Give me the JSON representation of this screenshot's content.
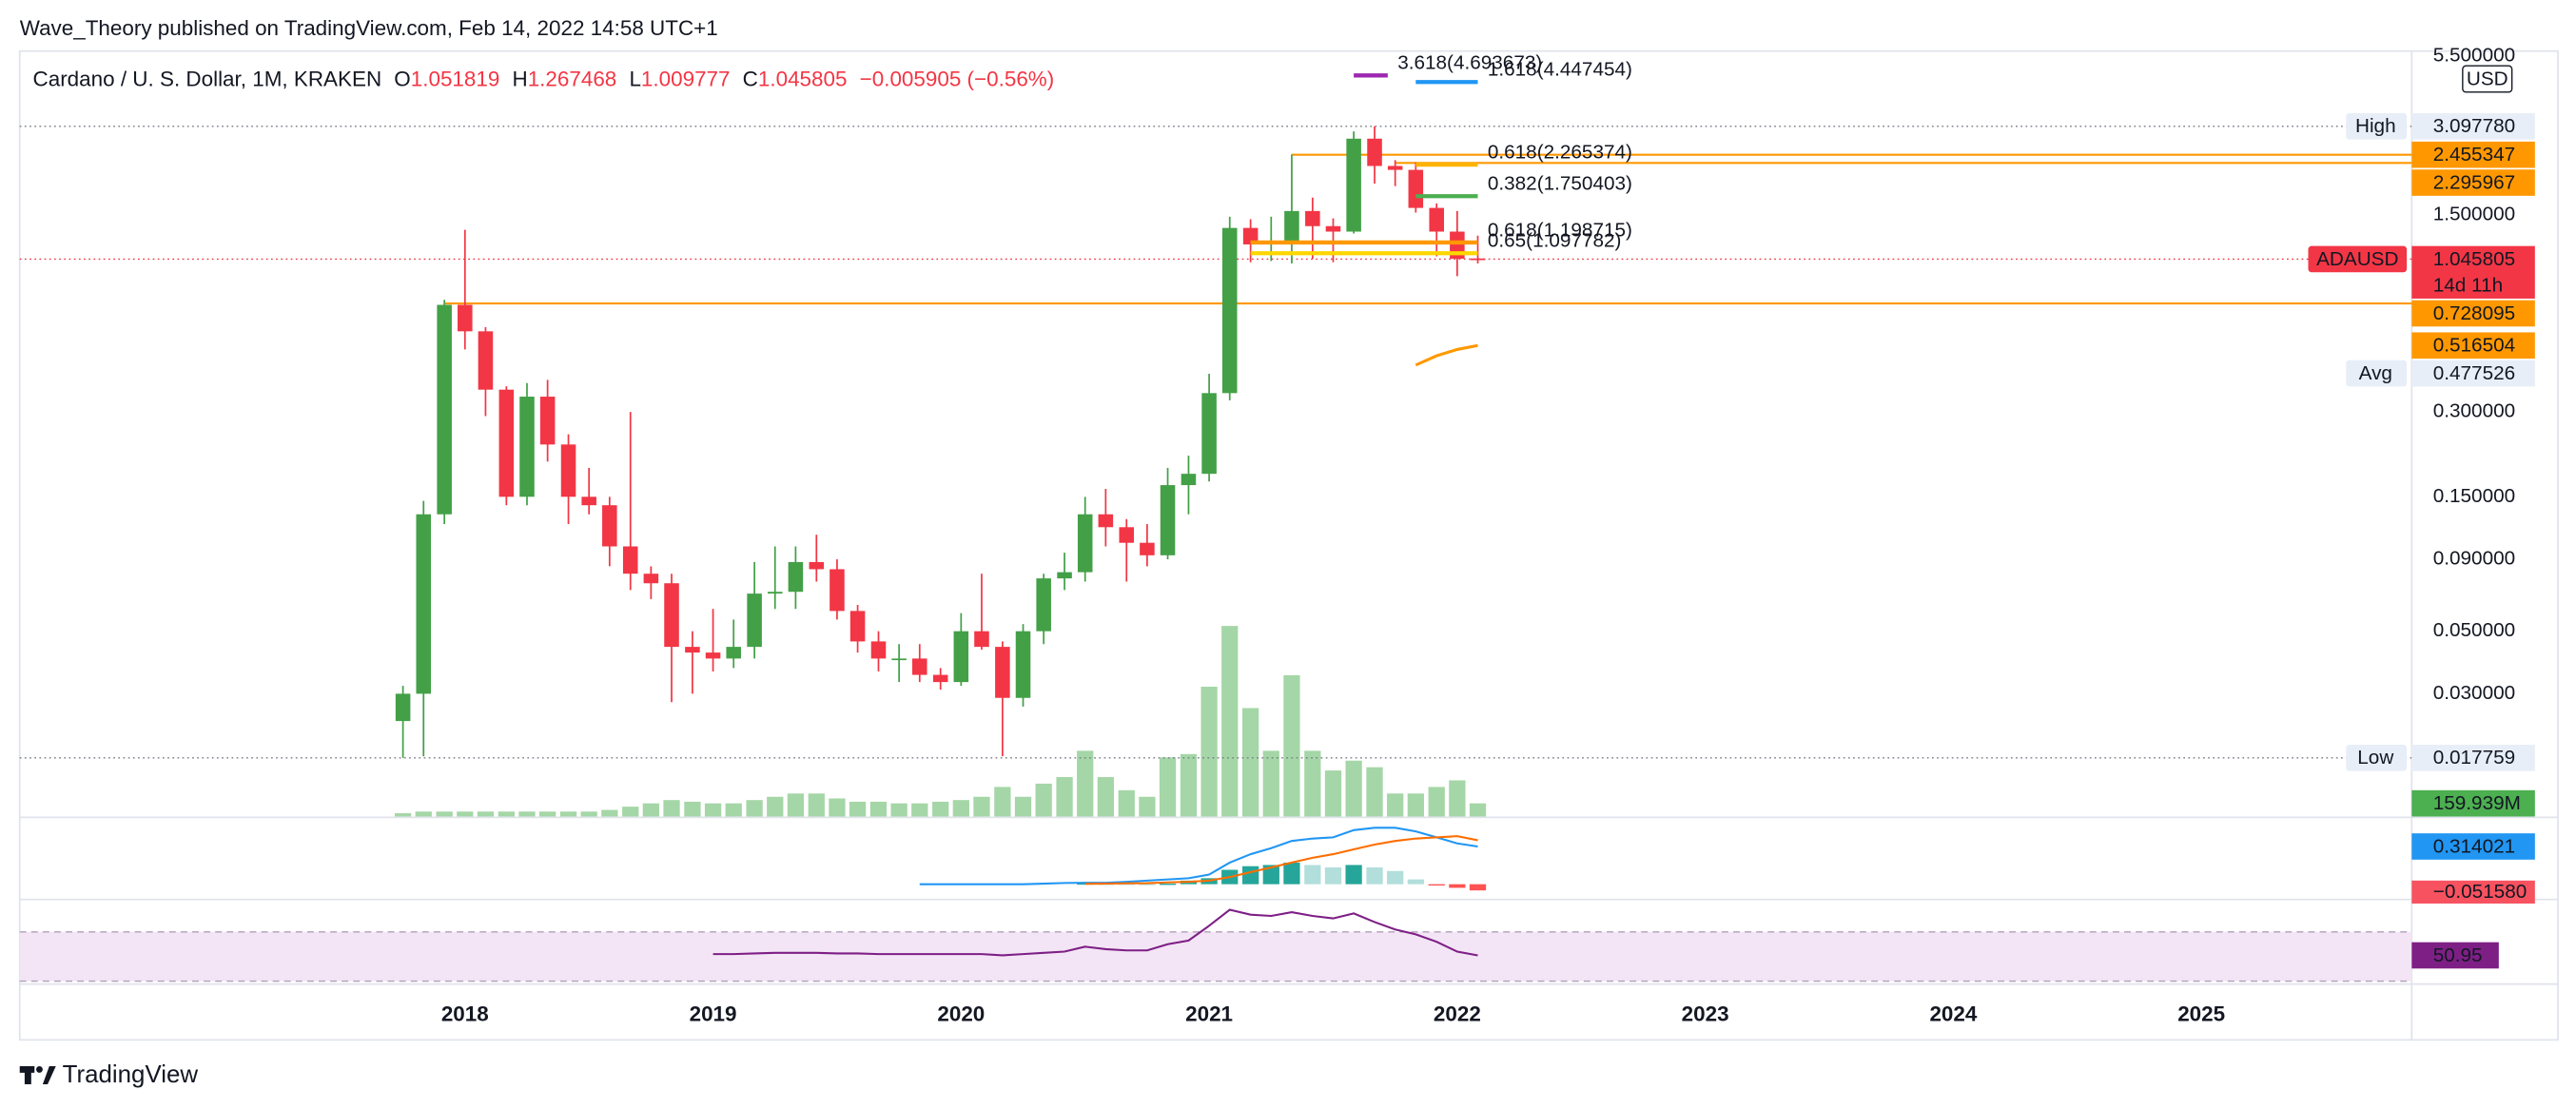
{
  "header": {
    "title": "Wave_Theory published on TradingView.com, Feb 14, 2022 14:58 UTC+1"
  },
  "footer": {
    "brand": "TradingView"
  },
  "chart_data": {
    "type": "candlestick",
    "legend": {
      "symbol": "Cardano / U. S. Dollar, 1M, KRAKEN",
      "keys": [
        "O",
        "H",
        "L",
        "C"
      ],
      "change": "−0.005905 (−0.56%)"
    },
    "currency": "USD",
    "log_scale": true,
    "up_color": "#43a047",
    "down_color": "#f23645",
    "xlim": [
      2016.205,
      2025.848
    ],
    "xticks": [
      2018,
      2019,
      2020,
      2021,
      2022,
      2023,
      2024,
      2025
    ],
    "ylim": [
      0.011,
      5.73
    ],
    "yticks": [
      {
        "value": 5.5,
        "label": "5.500000"
      },
      {
        "value": 1.5,
        "label": "1.500000"
      },
      {
        "value": 0.3,
        "label": "0.300000"
      },
      {
        "value": 0.15,
        "label": "0.150000"
      },
      {
        "value": 0.09,
        "label": "0.090000"
      },
      {
        "value": 0.05,
        "label": "0.050000"
      },
      {
        "value": 0.03,
        "label": "0.030000"
      }
    ],
    "x": [
      2017.75,
      2017.833,
      2017.917,
      2018,
      2018.083,
      2018.167,
      2018.25,
      2018.333,
      2018.417,
      2018.5,
      2018.583,
      2018.667,
      2018.75,
      2018.833,
      2018.917,
      2019,
      2019.083,
      2019.167,
      2019.25,
      2019.333,
      2019.417,
      2019.5,
      2019.583,
      2019.667,
      2019.75,
      2019.833,
      2019.917,
      2020,
      2020.083,
      2020.167,
      2020.25,
      2020.333,
      2020.417,
      2020.5,
      2020.583,
      2020.667,
      2020.75,
      2020.833,
      2020.917,
      2021,
      2021.083,
      2021.167,
      2021.25,
      2021.333,
      2021.417,
      2021.5,
      2021.583,
      2021.667,
      2021.75,
      2021.833,
      2021.917,
      2022,
      2022.083
    ],
    "open": [
      0.024,
      0.03,
      0.13,
      0.72,
      0.58,
      0.36,
      0.15,
      0.34,
      0.23,
      0.15,
      0.14,
      0.1,
      0.08,
      0.074,
      0.044,
      0.042,
      0.04,
      0.044,
      0.068,
      0.069,
      0.088,
      0.083,
      0.059,
      0.046,
      0.04,
      0.04,
      0.035,
      0.033,
      0.05,
      0.044,
      0.029,
      0.05,
      0.077,
      0.081,
      0.13,
      0.117,
      0.103,
      0.093,
      0.165,
      0.181,
      0.35,
      1.35,
      1.18,
      1.21,
      1.55,
      1.37,
      1.31,
      2.8,
      2.24,
      2.17,
      1.59,
      1.31,
      1.051819
    ],
    "high": [
      0.032,
      0.145,
      0.75,
      1.33,
      0.6,
      0.37,
      0.38,
      0.39,
      0.25,
      0.19,
      0.15,
      0.3,
      0.085,
      0.08,
      0.05,
      0.06,
      0.055,
      0.088,
      0.1,
      0.1,
      0.11,
      0.09,
      0.062,
      0.05,
      0.045,
      0.045,
      0.037,
      0.058,
      0.08,
      0.046,
      0.053,
      0.08,
      0.095,
      0.15,
      0.16,
      0.125,
      0.12,
      0.19,
      0.21,
      0.41,
      1.48,
      1.45,
      1.48,
      2.46,
      1.73,
      1.46,
      2.97,
      3.09778,
      2.35,
      2.31,
      1.65,
      1.55,
      1.267468
    ],
    "low": [
      0.017759,
      0.018,
      0.12,
      0.5,
      0.29,
      0.14,
      0.14,
      0.2,
      0.12,
      0.13,
      0.085,
      0.07,
      0.065,
      0.028,
      0.03,
      0.036,
      0.037,
      0.04,
      0.06,
      0.06,
      0.075,
      0.055,
      0.042,
      0.036,
      0.033,
      0.033,
      0.031,
      0.032,
      0.043,
      0.018,
      0.027,
      0.045,
      0.07,
      0.075,
      0.1,
      0.075,
      0.085,
      0.09,
      0.13,
      0.17,
      0.33,
      1.02,
      1.03,
      1.01,
      1.05,
      1.02,
      1.29,
      1.94,
      1.9,
      1.53,
      1.07,
      0.91,
      1.009777
    ],
    "close": [
      0.03,
      0.13,
      0.72,
      0.58,
      0.36,
      0.15,
      0.34,
      0.23,
      0.15,
      0.14,
      0.1,
      0.08,
      0.074,
      0.044,
      0.042,
      0.04,
      0.044,
      0.068,
      0.069,
      0.088,
      0.083,
      0.059,
      0.046,
      0.04,
      0.04,
      0.035,
      0.033,
      0.05,
      0.044,
      0.029,
      0.05,
      0.077,
      0.081,
      0.13,
      0.117,
      0.103,
      0.093,
      0.165,
      0.181,
      0.35,
      1.35,
      1.18,
      1.21,
      1.55,
      1.37,
      1.31,
      2.8,
      2.24,
      2.17,
      1.59,
      1.31,
      1.05,
      1.045805
    ],
    "symbol_label": "ADAUSD",
    "countdown": "14d 11h",
    "stats": [
      {
        "name": "High",
        "value": 3.09778,
        "label": "3.097780",
        "dotted": true
      },
      {
        "name": "Avg",
        "value": 0.477526,
        "dotted": false
      },
      {
        "name": "Low",
        "value": 0.017759,
        "dotted": true
      }
    ],
    "price_lines": [
      {
        "value": 2.455347,
        "color": "#ff9800",
        "from": 2021.333
      },
      {
        "value": 2.295967,
        "color": "#ff9800",
        "from": 2021.75
      },
      {
        "value": 0.728095,
        "color": "#ff9800",
        "from": 2017.917
      }
    ],
    "fib_levels": [
      {
        "label": "3.618(4.693673)",
        "value": 4.693673,
        "color": "#9c27b0",
        "from": 2021.583,
        "to": 2021.72
      },
      {
        "label": "1.618(4.447454)",
        "value": 4.447454,
        "color": "#2196f3",
        "from": 2021.833,
        "to": 2022.083
      },
      {
        "label": "0.618(2.265374)",
        "value": 2.265374,
        "color": "#ffb300",
        "from": 2021.833,
        "to": 2022.083
      },
      {
        "label": "0.382(1.750403)",
        "value": 1.750403,
        "color": "#4caf50",
        "from": 2021.833,
        "to": 2022.083
      },
      {
        "label": "0.618(1.198715)",
        "value": 1.198715,
        "color": "#ff9800",
        "from": 2021.167,
        "to": 2022.083
      },
      {
        "label": "0.65(1.097782)",
        "value": 1.097782,
        "color": "#ffd600",
        "from": 2021.167,
        "to": 2022.083
      }
    ],
    "ma": {
      "color": "#ff9800",
      "values": [
        null,
        null,
        null,
        null,
        null,
        null,
        null,
        null,
        null,
        null,
        null,
        null,
        null,
        null,
        null,
        null,
        null,
        null,
        null,
        null,
        null,
        null,
        null,
        null,
        null,
        null,
        null,
        null,
        null,
        null,
        null,
        null,
        null,
        null,
        null,
        null,
        null,
        null,
        null,
        null,
        null,
        null,
        null,
        null,
        null,
        null,
        null,
        null,
        null,
        0.44,
        0.475,
        0.5,
        0.516504
      ]
    },
    "volume": {
      "color": "#a5d6a7",
      "label_color": "#4caf50",
      "ylim": [
        0,
        3000
      ],
      "last_label": "159.939M",
      "values": [
        40,
        60,
        60,
        60,
        60,
        60,
        60,
        60,
        60,
        60,
        80,
        120,
        160,
        200,
        180,
        160,
        160,
        200,
        240,
        280,
        280,
        220,
        180,
        180,
        160,
        160,
        180,
        200,
        240,
        360,
        240,
        400,
        480,
        800,
        480,
        320,
        240,
        720,
        760,
        1580,
        2320,
        1320,
        800,
        1720,
        800,
        560,
        680,
        600,
        280,
        280,
        360,
        440,
        159.939
      ]
    },
    "macd": {
      "ylim": [
        -0.12,
        0.55
      ],
      "macd_color": "#2196f3",
      "signal_color": "#ff6d00",
      "hist_colors": [
        "#26a69a",
        "#b2dfdb",
        "#ff5252",
        "#ffcdd2"
      ],
      "hist_last_label": "−0.051580",
      "macd": [
        null,
        null,
        null,
        null,
        null,
        null,
        null,
        null,
        null,
        null,
        null,
        null,
        null,
        null,
        null,
        null,
        null,
        null,
        null,
        null,
        null,
        null,
        null,
        null,
        null,
        0,
        0,
        0,
        0,
        0,
        0,
        0.005,
        0.01,
        0.012,
        0.012,
        0.02,
        0.03,
        0.04,
        0.05,
        0.08,
        0.18,
        0.25,
        0.3,
        0.36,
        0.38,
        0.39,
        0.45,
        0.47,
        0.47,
        0.44,
        0.39,
        0.34,
        0.314021
      ],
      "signal": [
        null,
        null,
        null,
        null,
        null,
        null,
        null,
        null,
        null,
        null,
        null,
        null,
        null,
        null,
        null,
        null,
        null,
        null,
        null,
        null,
        null,
        null,
        null,
        null,
        null,
        null,
        null,
        null,
        null,
        null,
        null,
        null,
        null,
        0.003,
        0.005,
        0.007,
        0.009,
        0.015,
        0.02,
        0.03,
        0.06,
        0.1,
        0.14,
        0.18,
        0.22,
        0.25,
        0.29,
        0.33,
        0.36,
        0.38,
        0.39,
        0.4,
        0.366
      ],
      "histogram": [
        null,
        null,
        null,
        null,
        null,
        null,
        null,
        null,
        null,
        null,
        null,
        null,
        null,
        null,
        null,
        null,
        null,
        null,
        null,
        null,
        null,
        null,
        null,
        null,
        null,
        null,
        null,
        null,
        null,
        null,
        null,
        null,
        null,
        0.007,
        0.007,
        0.005,
        0.003,
        0.005,
        0.03,
        0.05,
        0.12,
        0.15,
        0.16,
        0.18,
        0.16,
        0.14,
        0.16,
        0.14,
        0.11,
        0.04,
        -0.01,
        -0.03,
        -0.05158
      ]
    },
    "rsi": {
      "ylim": [
        29,
        95.7
      ],
      "band": [
        30,
        70
      ],
      "color": "#7e1f86",
      "band_color": "#f3e5f5",
      "values": [
        null,
        null,
        null,
        null,
        null,
        null,
        null,
        null,
        null,
        null,
        null,
        null,
        null,
        null,
        null,
        52,
        52,
        52.5,
        53,
        53,
        53,
        52.5,
        52.5,
        52,
        52,
        52,
        52,
        52,
        52,
        51,
        52,
        53,
        54,
        58,
        56,
        55,
        55,
        60,
        63,
        75,
        88,
        84,
        83,
        86,
        83,
        81,
        85,
        78,
        72,
        68,
        62,
        54,
        50.95
      ]
    }
  }
}
